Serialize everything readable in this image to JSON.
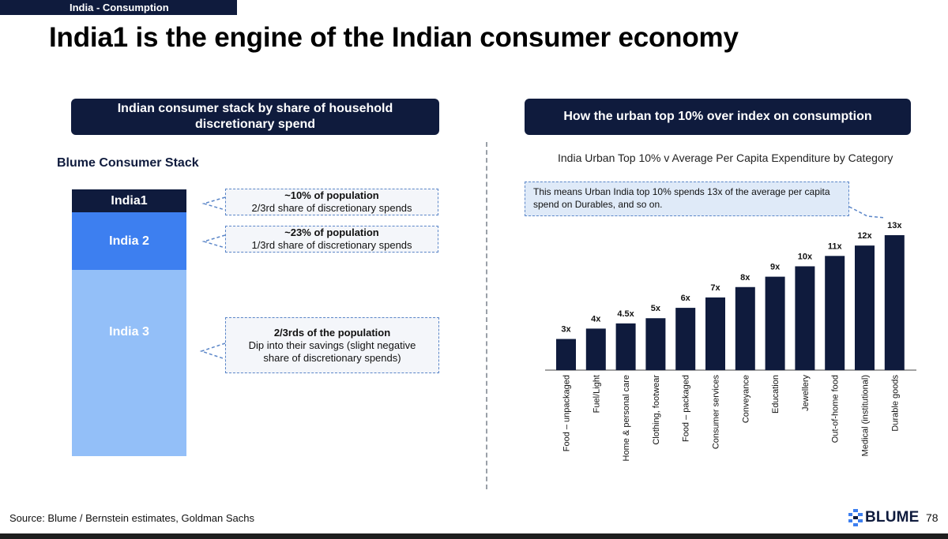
{
  "section_tag": "India - Consumption",
  "title": "India1 is the engine of the Indian consumer economy",
  "left_panel": {
    "header": "Indian consumer stack by share of household discretionary spend",
    "stack_title": "Blume Consumer Stack",
    "segments": [
      {
        "label": "India1",
        "color": "#0f1b3d"
      },
      {
        "label": "India 2",
        "color": "#3d7ff0"
      },
      {
        "label": "India 3",
        "color": "#93bff8"
      }
    ],
    "callouts": [
      {
        "headline": "~10% of population",
        "detail": "2/3rd share of discretionary spends"
      },
      {
        "headline": "~23% of population",
        "detail": "1/3rd share of discretionary spends"
      },
      {
        "headline": "2/3rds of the population",
        "detail": "Dip into their savings (slight negative share of discretionary spends)"
      }
    ]
  },
  "right_panel": {
    "header": "How the urban top 10% over index on consumption",
    "note": "This means Urban India top 10% spends 13x of the average per capita spend  on Durables, and so on."
  },
  "chart_data": {
    "type": "bar",
    "title": "India Urban Top 10% v Average Per Capita Expenditure by Category",
    "categories": [
      "Food – unpackaged",
      "Fuel/Light",
      "Home & personal care",
      "Clothing, footwear",
      "Food – packaged",
      "Consumer services",
      "Conveyance",
      "Education",
      "Jewellery",
      "Out-of-home food",
      "Medical (institutional)",
      "Durable goods"
    ],
    "values": [
      3,
      4,
      4.5,
      5,
      6,
      7,
      8,
      9,
      10,
      11,
      12,
      13
    ],
    "data_labels": [
      "3x",
      "4x",
      "4.5x",
      "5x",
      "6x",
      "7x",
      "8x",
      "9x",
      "10x",
      "11x",
      "12x",
      "13x"
    ],
    "bar_color": "#0f1b3d",
    "ylim": [
      0,
      13
    ],
    "grid": false,
    "legend": "none"
  },
  "footer": {
    "source": "Source: Blume / Bernstein estimates, Goldman Sachs",
    "logo": "BLUME",
    "page_number": "78"
  }
}
